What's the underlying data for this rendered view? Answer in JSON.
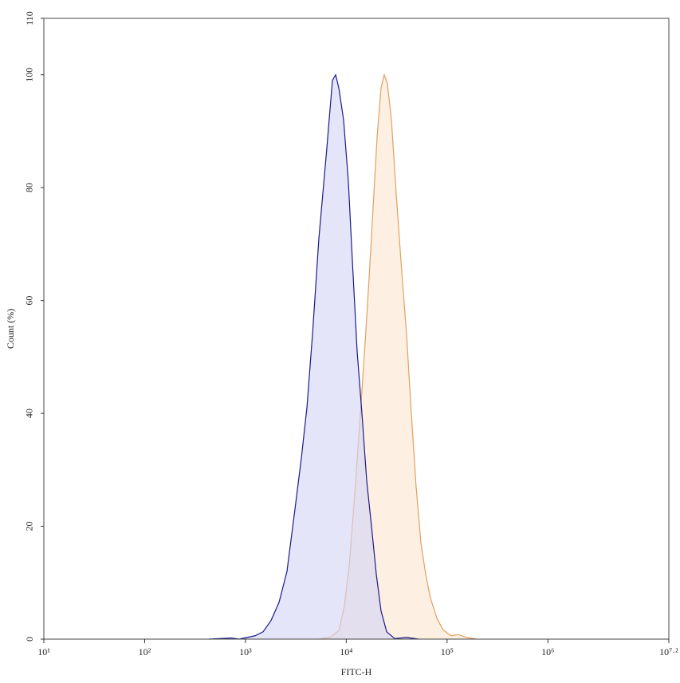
{
  "chart_data": {
    "type": "area",
    "x_label": "FITC-H",
    "y_label": "Count (%)",
    "x_log": true,
    "xlim": [
      10,
      15848932
    ],
    "xticks": [
      {
        "value": 10,
        "label": "10¹"
      },
      {
        "value": 100,
        "label": "10²"
      },
      {
        "value": 1000,
        "label": "10³"
      },
      {
        "value": 10000,
        "label": "10⁴"
      },
      {
        "value": 100000,
        "label": "10⁵"
      },
      {
        "value": 1000000,
        "label": "10⁶"
      },
      {
        "value": 15848932,
        "label": "10⁷·²"
      }
    ],
    "ylim": [
      0,
      110
    ],
    "yticks": [
      0,
      20,
      40,
      60,
      80,
      100,
      110
    ],
    "series": [
      {
        "color": "#e0a060",
        "fill": "#fdeedf",
        "x": [
          5350,
          7030,
          8430,
          9570,
          10690,
          12140,
          13800,
          15380,
          16850,
          18460,
          20230,
          22130,
          23810,
          25600,
          28050,
          31260,
          35560,
          39630,
          44200,
          49300,
          55080,
          61380,
          68550,
          79250,
          91600,
          109900,
          129500,
          155200,
          196800
        ],
        "values": [
          0,
          0.4,
          1.5,
          5.8,
          13,
          25.6,
          40,
          52.5,
          64,
          76.5,
          89,
          97.7,
          100,
          98.4,
          92,
          79,
          65,
          54,
          40,
          27,
          17,
          11.5,
          7.2,
          3.7,
          1.6,
          0.6,
          0.8,
          0.3,
          0
        ]
      },
      {
        "color": "#1a1a8c",
        "fill": "#d4d4f6",
        "x": [
          434,
          722,
          866,
          1040,
          1247,
          1496,
          1794,
          2152,
          2581,
          3097,
          3581,
          4070,
          4625,
          5350,
          6416,
          7290,
          7840,
          8430,
          9410,
          10500,
          11500,
          12820,
          14300,
          15960,
          17800,
          19860,
          22130,
          25180,
          30200,
          39630,
          52120
        ],
        "values": [
          0,
          0.2,
          0,
          0.3,
          0.6,
          1.3,
          3.3,
          6.5,
          12,
          23,
          32,
          41,
          54,
          71,
          87,
          99,
          100,
          97.7,
          92,
          81,
          67,
          51,
          40,
          28,
          20,
          11.5,
          5,
          1.3,
          0.1,
          0.3,
          0
        ]
      }
    ]
  }
}
